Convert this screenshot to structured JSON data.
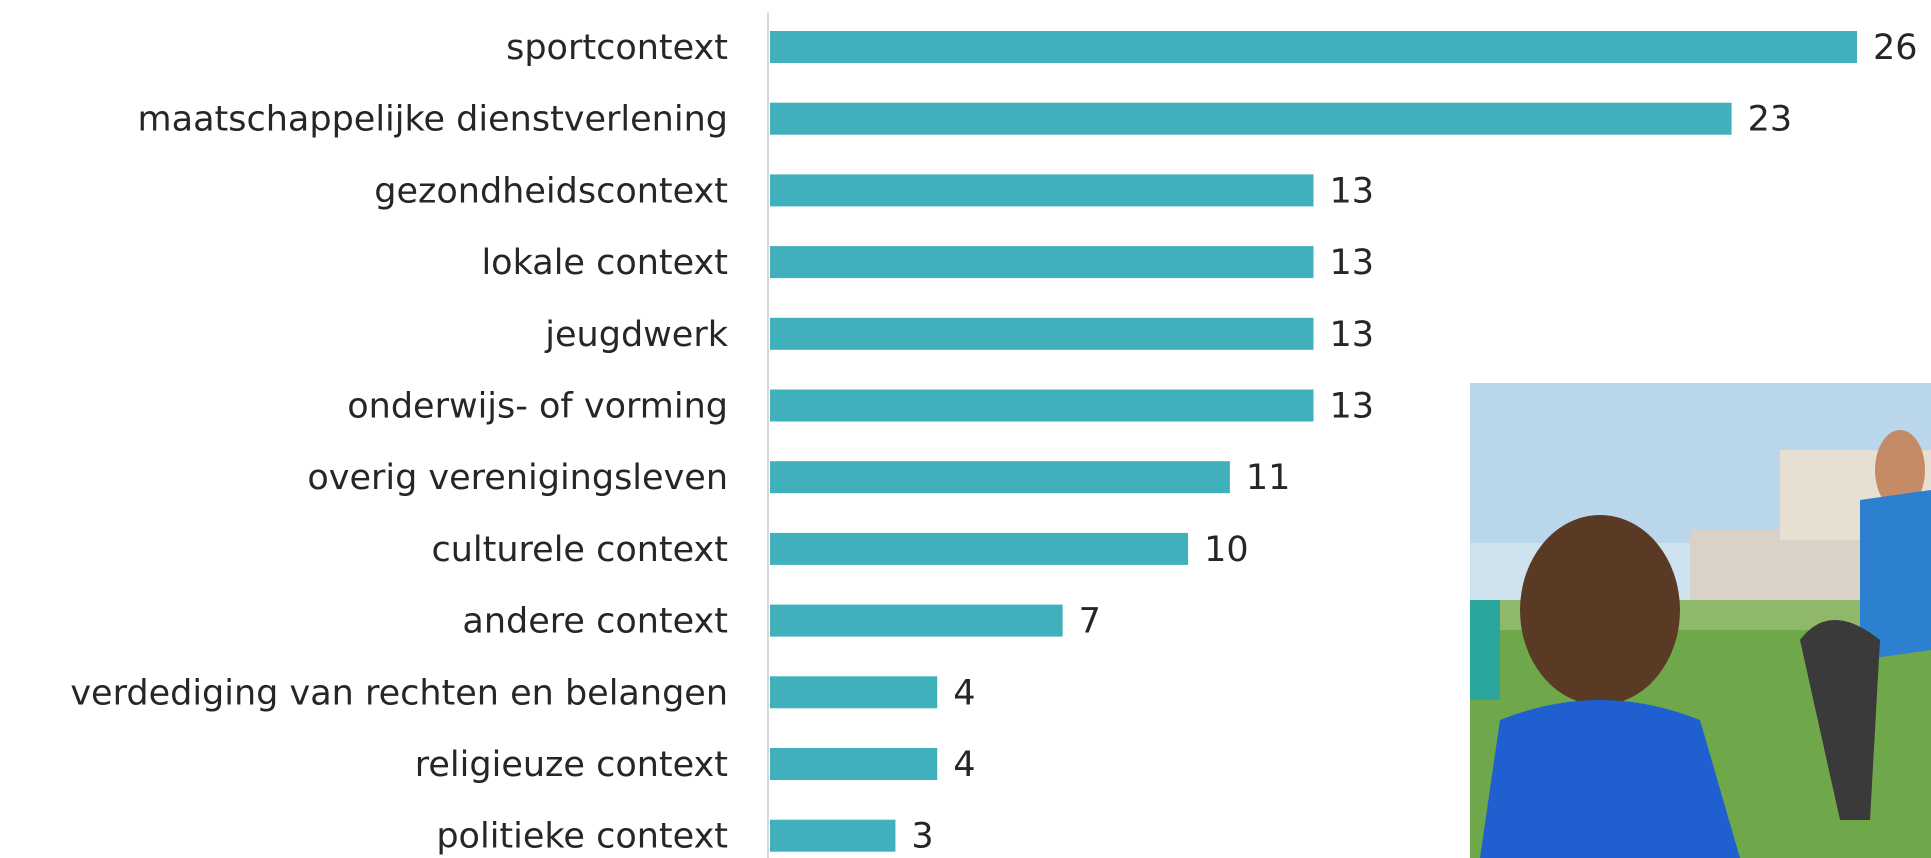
{
  "chart_data": {
    "type": "hbar",
    "categories": [
      "sportcontext",
      "maatschappelijke dienstverlening",
      "gezondheidscontext",
      "lokale context",
      "jeugdwerk",
      "onderwijs- of  vorming",
      "overig verenigingsleven",
      "culturele context",
      "andere context",
      "verdediging van rechten en belangen",
      "religieuze context",
      "politieke context"
    ],
    "values": [
      26,
      23,
      13,
      13,
      13,
      13,
      11,
      10,
      7,
      4,
      4,
      3
    ],
    "color": "#40b1bc",
    "xlim": [
      0,
      26
    ]
  }
}
